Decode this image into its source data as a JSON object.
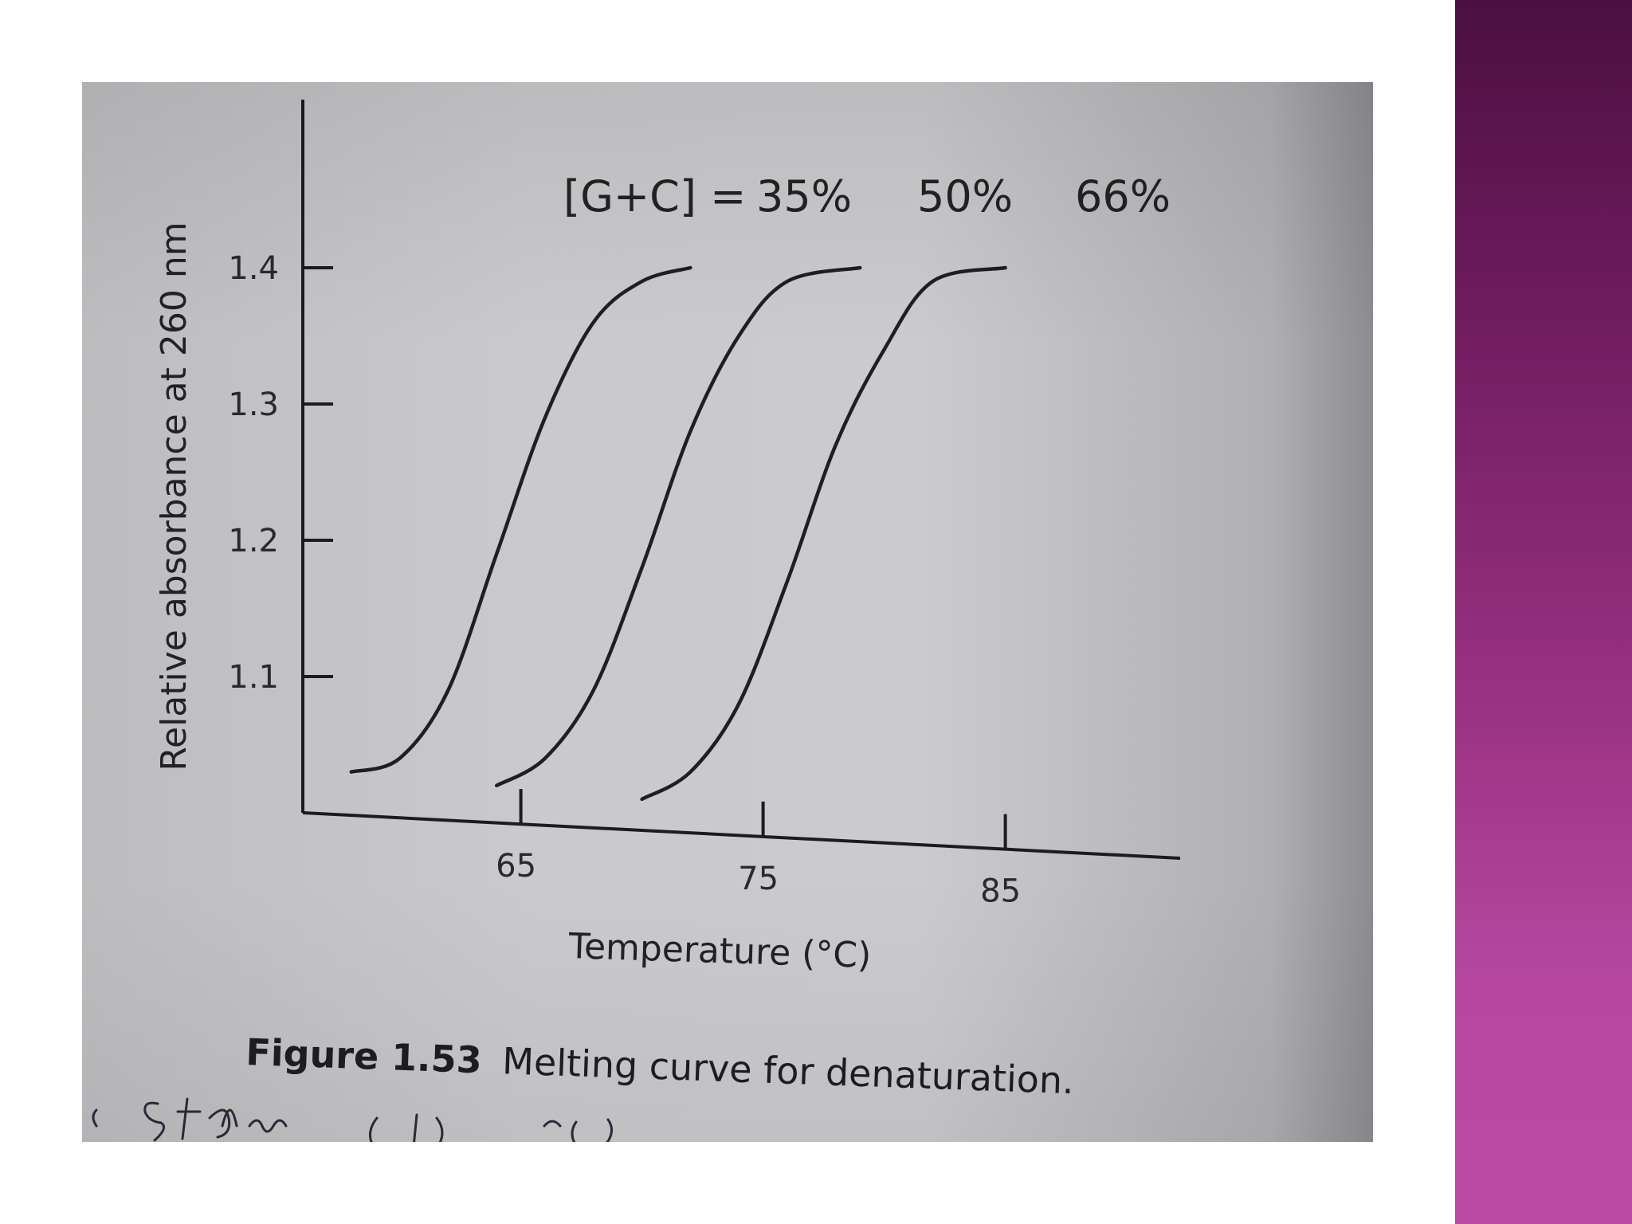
{
  "chart_data": {
    "type": "line",
    "title": "",
    "xlabel": "Temperature (°C)",
    "ylabel": "Relative absorbance at 260 nm",
    "x_ticks": [
      65,
      75,
      85
    ],
    "y_ticks": [
      1.1,
      1.2,
      1.3,
      1.4
    ],
    "xlim": [
      56,
      93
    ],
    "ylim": [
      1.0,
      1.5
    ],
    "grid": false,
    "annotation": {
      "prefix": "[G+C] = ",
      "labels": [
        "35%",
        "50%",
        "66%"
      ]
    },
    "series": [
      {
        "name": "35%",
        "x": [
          58,
          60,
          62,
          64,
          66,
          68,
          70,
          72
        ],
        "y": [
          1.03,
          1.04,
          1.09,
          1.19,
          1.29,
          1.36,
          1.39,
          1.4
        ]
      },
      {
        "name": "50%",
        "x": [
          64,
          66,
          68,
          70,
          72,
          74,
          76,
          79
        ],
        "y": [
          1.02,
          1.04,
          1.09,
          1.18,
          1.28,
          1.35,
          1.39,
          1.4
        ]
      },
      {
        "name": "66%",
        "x": [
          70,
          72,
          74,
          76,
          78,
          80,
          82,
          85
        ],
        "y": [
          1.01,
          1.03,
          1.08,
          1.17,
          1.27,
          1.34,
          1.39,
          1.4
        ]
      }
    ]
  },
  "caption": {
    "label": "Figure 1.53",
    "text": "Melting curve for denaturation."
  },
  "colors": {
    "accent_bar_top": "#4c0f40",
    "accent_bar_bottom": "#bb4aa6",
    "page_background": "#cacacd",
    "ink": "#222224"
  }
}
